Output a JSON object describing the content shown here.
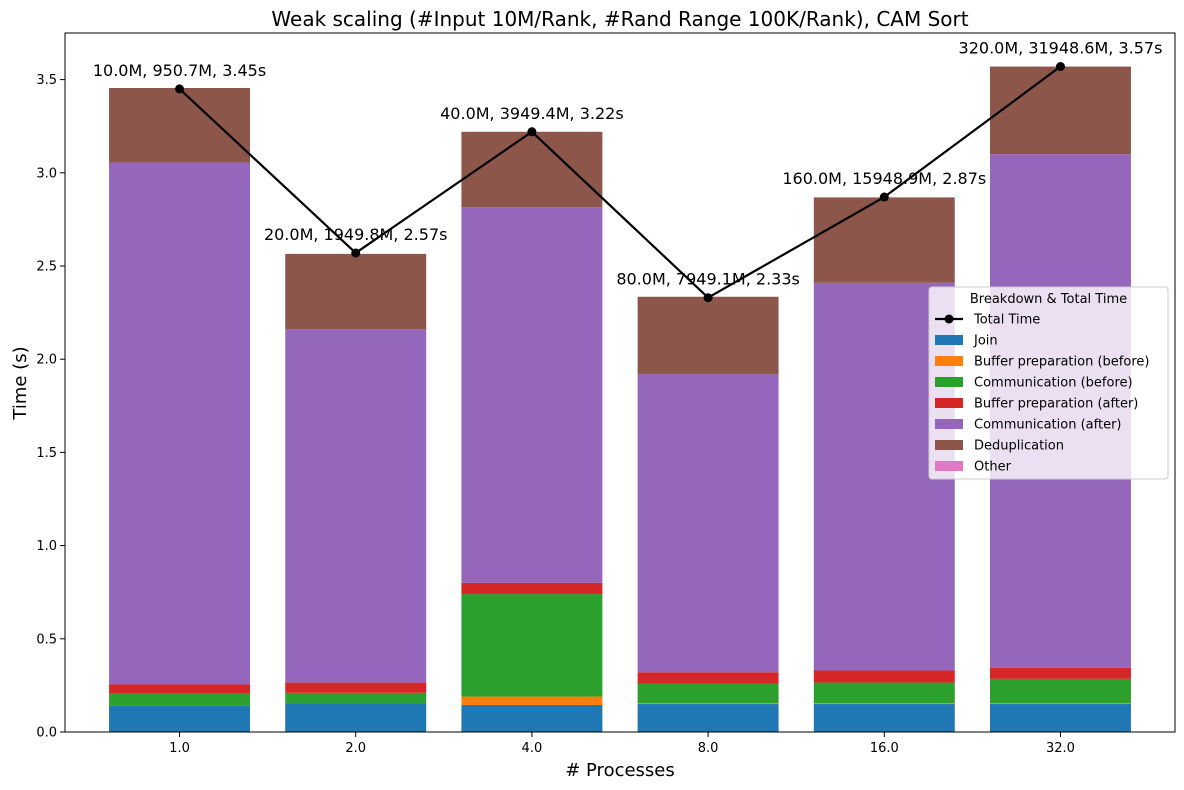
{
  "chart_data": {
    "type": "bar",
    "stacked": true,
    "title": "Weak scaling (#Input 10M/Rank, #Rand Range 100K/Rank), CAM Sort",
    "xlabel": "# Processes",
    "ylabel": "Time (s)",
    "ylim": [
      0,
      3.75
    ],
    "yticks": [
      "0.0",
      "0.5",
      "1.0",
      "1.5",
      "2.0",
      "2.5",
      "3.0",
      "3.5"
    ],
    "categories": [
      "1.0",
      "2.0",
      "4.0",
      "8.0",
      "16.0",
      "32.0"
    ],
    "series": [
      {
        "name": "Join",
        "color": "#1f77b4",
        "values": [
          0.14,
          0.155,
          0.145,
          0.15,
          0.15,
          0.15
        ]
      },
      {
        "name": "Buffer preparation (before)",
        "color": "#ff7f0e",
        "values": [
          0.0,
          0.0,
          0.045,
          0.005,
          0.005,
          0.005
        ]
      },
      {
        "name": "Communication (before)",
        "color": "#2ca02c",
        "values": [
          0.065,
          0.055,
          0.55,
          0.105,
          0.11,
          0.13
        ]
      },
      {
        "name": "Buffer preparation (after)",
        "color": "#d62728",
        "values": [
          0.05,
          0.055,
          0.06,
          0.06,
          0.065,
          0.06
        ]
      },
      {
        "name": "Communication (after)",
        "color": "#9467bd",
        "values": [
          2.8,
          1.895,
          2.015,
          1.6,
          2.08,
          2.755
        ]
      },
      {
        "name": "Deduplication",
        "color": "#8c564b",
        "values": [
          0.4,
          0.405,
          0.405,
          0.415,
          0.455,
          0.47
        ]
      },
      {
        "name": "Other",
        "color": "#e377c2",
        "values": [
          0.0,
          0.0,
          0.0,
          0.0,
          0.005,
          0.0
        ]
      }
    ],
    "total_series": {
      "name": "Total Time",
      "color": "#000000",
      "values": [
        3.45,
        2.57,
        3.22,
        2.33,
        2.87,
        3.57
      ]
    },
    "annotations": [
      "10.0M, 950.7M, 3.45s",
      "20.0M, 1949.8M, 2.57s",
      "40.0M, 3949.4M, 3.22s",
      "80.0M, 7949.1M, 2.33s",
      "160.0M, 15948.9M, 2.87s",
      "320.0M, 31948.6M, 3.57s"
    ],
    "legend": {
      "title": "Breakdown & Total Time",
      "placement": "center-right"
    },
    "grid": false
  }
}
